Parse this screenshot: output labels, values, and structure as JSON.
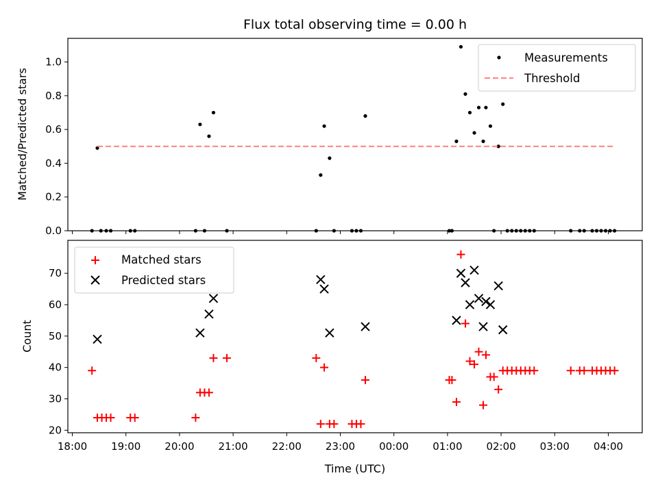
{
  "chart_data": {
    "title": "Flux total observing time = 0.00 h",
    "xlabel": "Time (UTC)",
    "x_unit": "hours since 18:00 UTC",
    "xlim": [
      "17:55",
      "04:38"
    ],
    "xticks": [
      {
        "label": "18:00",
        "value": "18:00"
      },
      {
        "label": "19:00",
        "value": "19:00"
      },
      {
        "label": "20:00",
        "value": "20:00"
      },
      {
        "label": "21:00",
        "value": "21:00"
      },
      {
        "label": "22:00",
        "value": "22:00"
      },
      {
        "label": "23:00",
        "value": "23:00"
      },
      {
        "label": "00:00",
        "value": "00:00"
      },
      {
        "label": "01:00",
        "value": "01:00"
      },
      {
        "label": "02:00",
        "value": "02:00"
      },
      {
        "label": "03:00",
        "value": "03:00"
      },
      {
        "label": "04:00",
        "value": "04:00"
      }
    ],
    "charts": [
      {
        "type": "scatter",
        "ylabel": "Matched/Predicted stars",
        "ylim": [
          0,
          1.14
        ],
        "yticks": [
          "0.0",
          "0.2",
          "0.4",
          "0.6",
          "0.8",
          "1.0"
        ],
        "ytick_values": [
          0,
          0.2,
          0.4,
          0.6,
          0.8,
          1.0
        ],
        "legend_position": "upper right",
        "series": [
          {
            "name": "Measurements",
            "kind": "scatter",
            "marker": "dot",
            "color": "#000000",
            "points": [
              [
                "18:22",
                0
              ],
              [
                "18:28",
                0.49
              ],
              [
                "18:32",
                0
              ],
              [
                "18:38",
                0
              ],
              [
                "18:43",
                0
              ],
              [
                "19:05",
                0
              ],
              [
                "19:10",
                0
              ],
              [
                "20:18",
                0
              ],
              [
                "20:23",
                0.63
              ],
              [
                "20:28",
                0
              ],
              [
                "20:33",
                0.56
              ],
              [
                "20:38",
                0.7
              ],
              [
                "20:53",
                0
              ],
              [
                "22:33",
                0
              ],
              [
                "22:38",
                0.33
              ],
              [
                "22:42",
                0.62
              ],
              [
                "22:48",
                0.43
              ],
              [
                "22:53",
                0
              ],
              [
                "23:13",
                0
              ],
              [
                "23:18",
                0
              ],
              [
                "23:23",
                0
              ],
              [
                "23:28",
                0.68
              ],
              [
                "01:02",
                0
              ],
              [
                "01:05",
                0
              ],
              [
                "01:10",
                0.53
              ],
              [
                "01:15",
                1.09
              ],
              [
                "01:20",
                0.81
              ],
              [
                "01:25",
                0.7
              ],
              [
                "01:30",
                0.58
              ],
              [
                "01:35",
                0.73
              ],
              [
                "01:40",
                0.53
              ],
              [
                "01:43",
                0.73
              ],
              [
                "01:48",
                0.62
              ],
              [
                "01:52",
                0
              ],
              [
                "01:57",
                0.5
              ],
              [
                "02:02",
                0.75
              ],
              [
                "02:07",
                0
              ],
              [
                "02:12",
                0
              ],
              [
                "02:17",
                0
              ],
              [
                "02:22",
                0
              ],
              [
                "02:27",
                0
              ],
              [
                "02:32",
                0
              ],
              [
                "02:37",
                0
              ],
              [
                "03:18",
                0
              ],
              [
                "03:28",
                0
              ],
              [
                "03:33",
                0
              ],
              [
                "03:42",
                0
              ],
              [
                "03:47",
                0
              ],
              [
                "03:52",
                0
              ],
              [
                "03:57",
                0
              ],
              [
                "04:02",
                0
              ],
              [
                "04:07",
                0
              ]
            ]
          },
          {
            "name": "Threshold",
            "kind": "line",
            "style": "dashed",
            "color": "#ff7f7f",
            "points": [
              [
                "18:28",
                0.5
              ],
              [
                "04:07",
                0.5
              ]
            ]
          }
        ]
      },
      {
        "type": "scatter",
        "ylabel": "Count",
        "ylim": [
          19.2,
          80.5
        ],
        "yticks": [
          "20",
          "30",
          "40",
          "50",
          "60",
          "70"
        ],
        "ytick_values": [
          20,
          30,
          40,
          50,
          60,
          70
        ],
        "legend_position": "upper left",
        "series": [
          {
            "name": "Matched stars",
            "kind": "scatter",
            "marker": "plus",
            "color": "#ff0000",
            "points": [
              [
                "18:22",
                39
              ],
              [
                "18:28",
                24
              ],
              [
                "18:33",
                24
              ],
              [
                "18:38",
                24
              ],
              [
                "18:43",
                24
              ],
              [
                "19:05",
                24
              ],
              [
                "19:10",
                24
              ],
              [
                "20:18",
                24
              ],
              [
                "20:23",
                32
              ],
              [
                "20:28",
                32
              ],
              [
                "20:33",
                32
              ],
              [
                "20:38",
                43
              ],
              [
                "20:53",
                43
              ],
              [
                "22:33",
                43
              ],
              [
                "22:38",
                22
              ],
              [
                "22:42",
                40
              ],
              [
                "22:48",
                22
              ],
              [
                "22:53",
                22
              ],
              [
                "23:13",
                22
              ],
              [
                "23:18",
                22
              ],
              [
                "23:23",
                22
              ],
              [
                "23:28",
                36
              ],
              [
                "01:02",
                36
              ],
              [
                "01:05",
                36
              ],
              [
                "01:10",
                29
              ],
              [
                "01:15",
                76
              ],
              [
                "01:20",
                54
              ],
              [
                "01:25",
                42
              ],
              [
                "01:30",
                41
              ],
              [
                "01:35",
                45
              ],
              [
                "01:40",
                28
              ],
              [
                "01:43",
                44
              ],
              [
                "01:48",
                37
              ],
              [
                "01:52",
                37
              ],
              [
                "01:57",
                33
              ],
              [
                "02:02",
                39
              ],
              [
                "02:07",
                39
              ],
              [
                "02:12",
                39
              ],
              [
                "02:17",
                39
              ],
              [
                "02:22",
                39
              ],
              [
                "02:27",
                39
              ],
              [
                "02:32",
                39
              ],
              [
                "02:37",
                39
              ],
              [
                "03:18",
                39
              ],
              [
                "03:28",
                39
              ],
              [
                "03:33",
                39
              ],
              [
                "03:42",
                39
              ],
              [
                "03:47",
                39
              ],
              [
                "03:52",
                39
              ],
              [
                "03:57",
                39
              ],
              [
                "04:02",
                39
              ],
              [
                "04:07",
                39
              ]
            ]
          },
          {
            "name": "Predicted stars",
            "kind": "scatter",
            "marker": "x",
            "color": "#000000",
            "points": [
              [
                "18:28",
                49
              ],
              [
                "20:23",
                51
              ],
              [
                "20:33",
                57
              ],
              [
                "20:38",
                62
              ],
              [
                "22:38",
                68
              ],
              [
                "22:42",
                65
              ],
              [
                "22:48",
                51
              ],
              [
                "23:28",
                53
              ],
              [
                "01:10",
                55
              ],
              [
                "01:15",
                70
              ],
              [
                "01:20",
                67
              ],
              [
                "01:25",
                60
              ],
              [
                "01:30",
                71
              ],
              [
                "01:35",
                62
              ],
              [
                "01:40",
                53
              ],
              [
                "01:43",
                61
              ],
              [
                "01:48",
                60
              ],
              [
                "01:57",
                66
              ],
              [
                "02:02",
                52
              ]
            ]
          }
        ]
      }
    ]
  }
}
